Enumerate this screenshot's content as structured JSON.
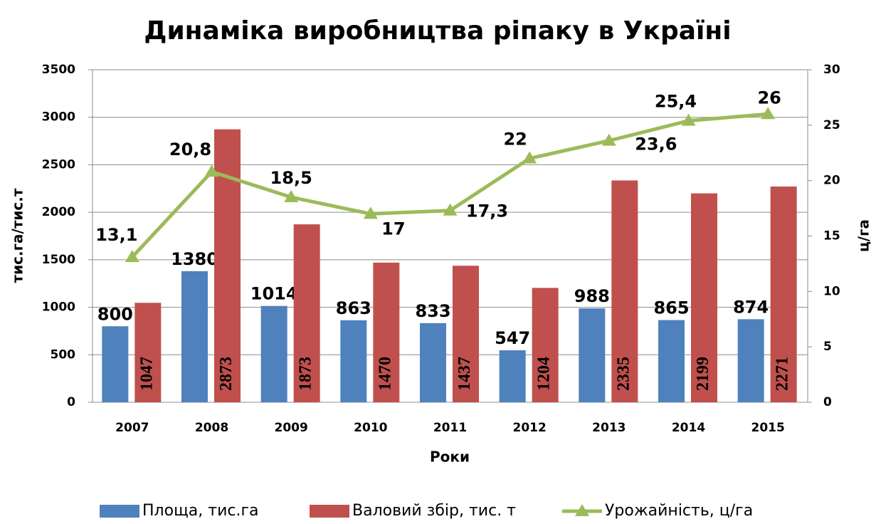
{
  "chart_data": {
    "type": "bar",
    "title": "Динаміка виробництва ріпаку в Україні",
    "x_label": "Роки",
    "y_label": "тис.га/тис.т",
    "y2_label": "ц/га",
    "categories": [
      "2007",
      "2008",
      "2009",
      "2010",
      "2011",
      "2012",
      "2013",
      "2014",
      "2015"
    ],
    "series": [
      {
        "name": "Площа, тис.га",
        "type": "bar",
        "color": "#4f81bd",
        "values": [
          800,
          1380,
          1014,
          863,
          833,
          547,
          988,
          865,
          874
        ]
      },
      {
        "name": "Валовий збір, тис. т",
        "type": "bar",
        "color": "#c0504d",
        "values": [
          1047,
          2873,
          1873,
          1470,
          1437,
          1204,
          2335,
          2199,
          2271
        ]
      },
      {
        "name": "Урожайність, ц/га",
        "type": "line",
        "axis": "y2",
        "color": "#9bbb59",
        "values": [
          13.1,
          20.8,
          18.5,
          17,
          17.3,
          22,
          23.6,
          25.4,
          26
        ],
        "value_labels": [
          "13,1",
          "20,8",
          "18,5",
          "17",
          "17,3",
          "22",
          "23,6",
          "25,4",
          "26"
        ]
      }
    ],
    "ylim": [
      0,
      3500
    ],
    "yticks": [
      0,
      500,
      1000,
      1500,
      2000,
      2500,
      3000,
      3500
    ],
    "y2lim": [
      0,
      30
    ],
    "y2ticks": [
      0,
      5,
      10,
      15,
      20,
      25,
      30
    ],
    "grid": true,
    "legend": "bottom"
  }
}
